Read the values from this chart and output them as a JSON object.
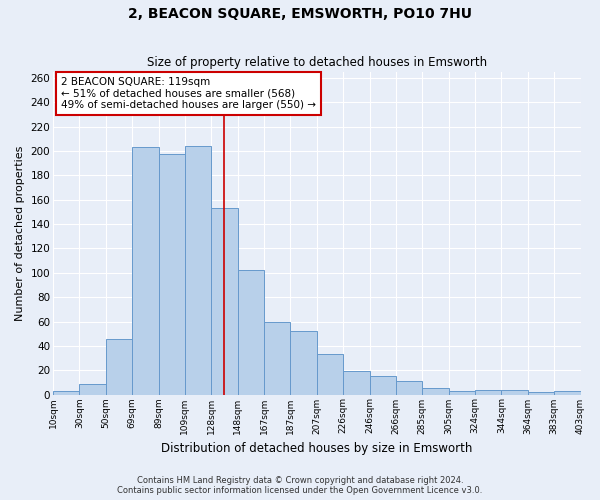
{
  "title": "2, BEACON SQUARE, EMSWORTH, PO10 7HU",
  "subtitle": "Size of property relative to detached houses in Emsworth",
  "xlabel": "Distribution of detached houses by size in Emsworth",
  "ylabel": "Number of detached properties",
  "bin_edges_labels": [
    "10sqm",
    "30sqm",
    "50sqm",
    "69sqm",
    "89sqm",
    "109sqm",
    "128sqm",
    "148sqm",
    "167sqm",
    "187sqm",
    "207sqm",
    "226sqm",
    "246sqm",
    "266sqm",
    "285sqm",
    "305sqm",
    "324sqm",
    "344sqm",
    "364sqm",
    "383sqm",
    "403sqm"
  ],
  "bar_values": [
    3,
    9,
    46,
    203,
    198,
    204,
    153,
    102,
    60,
    52,
    33,
    19,
    15,
    11,
    5,
    3,
    4,
    4,
    2,
    3
  ],
  "bar_color": "#b8d0ea",
  "bar_edge_color": "#6699cc",
  "background_color": "#e8eef8",
  "grid_color": "#ffffff",
  "vline_position": 6.47,
  "vline_color": "#cc0000",
  "annotation_title": "2 BEACON SQUARE: 119sqm",
  "annotation_line1": "← 51% of detached houses are smaller (568)",
  "annotation_line2": "49% of semi-detached houses are larger (550) →",
  "annotation_box_edgecolor": "#cc0000",
  "ylim": [
    0,
    265
  ],
  "yticks": [
    0,
    20,
    40,
    60,
    80,
    100,
    120,
    140,
    160,
    180,
    200,
    220,
    240,
    260
  ],
  "footer_line1": "Contains HM Land Registry data © Crown copyright and database right 2024.",
  "footer_line2": "Contains public sector information licensed under the Open Government Licence v3.0."
}
